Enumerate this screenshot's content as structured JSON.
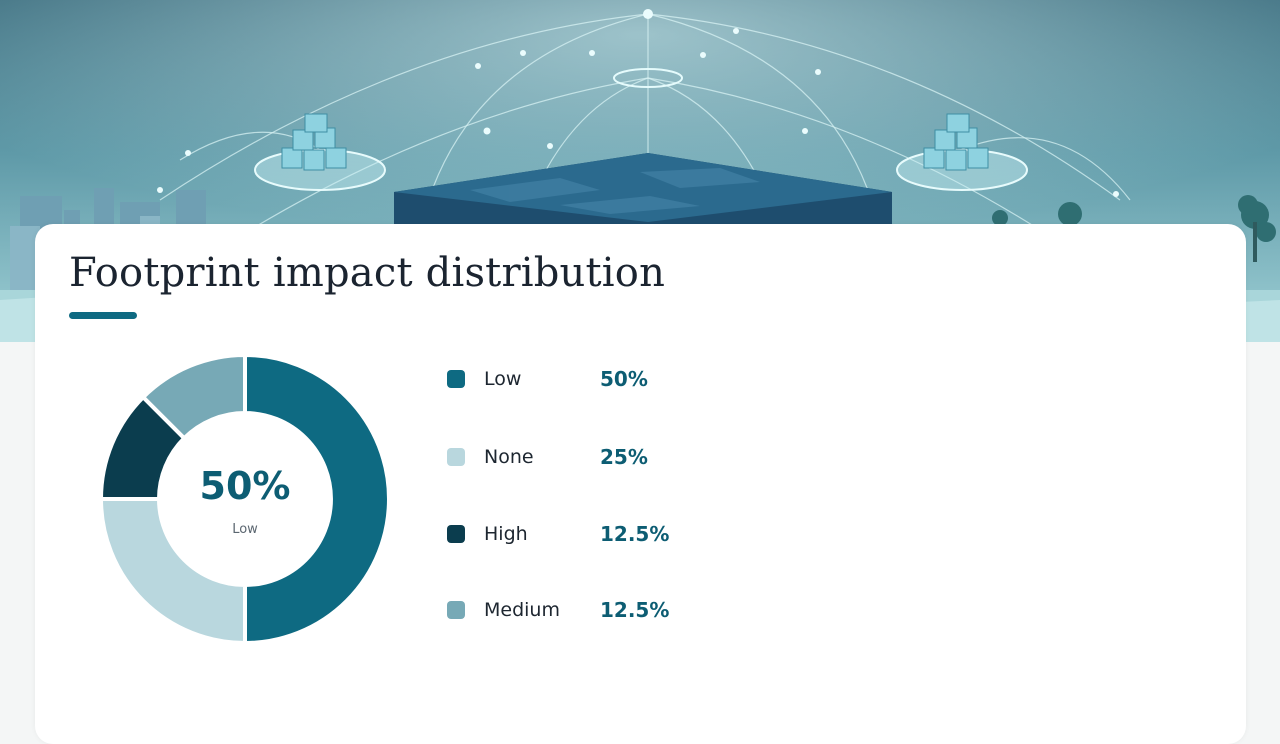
{
  "title": "Footprint impact distribution",
  "center": {
    "value": "50%",
    "label": "Low"
  },
  "colors": {
    "accent": "#0e6a82",
    "card": "#ffffff"
  },
  "chart_data": {
    "type": "pie",
    "donut": true,
    "title": "Footprint impact distribution",
    "categories": [
      "Low",
      "None",
      "High",
      "Medium"
    ],
    "values": [
      50,
      25,
      12.5,
      12.5
    ],
    "labels": [
      "50%",
      "25%",
      "12.5%",
      "12.5%"
    ],
    "colors": [
      "#0e6a82",
      "#b9d7de",
      "#0b3d4e",
      "#77a9b6"
    ],
    "legend_position": "right"
  }
}
